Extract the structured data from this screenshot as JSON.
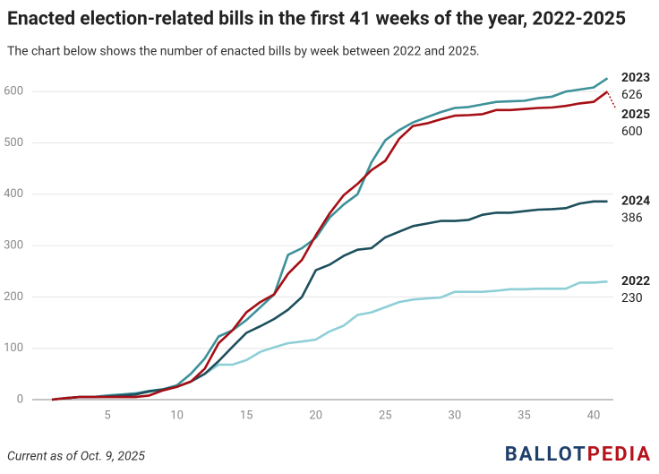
{
  "chart_data": {
    "type": "line",
    "title": "Enacted election-related bills in the first 41 weeks of the year, 2022-2025",
    "subtitle": "The chart below shows the number of enacted bills by week between 2022 and 2025.",
    "footnote": "Current as of Oct. 9, 2025",
    "logo": [
      "BALLOT",
      "PEDIA"
    ],
    "x": [
      1,
      2,
      3,
      4,
      5,
      6,
      7,
      8,
      9,
      10,
      11,
      12,
      13,
      14,
      15,
      16,
      17,
      18,
      19,
      20,
      21,
      22,
      23,
      24,
      25,
      26,
      27,
      28,
      29,
      30,
      31,
      32,
      33,
      34,
      35,
      36,
      37,
      38,
      39,
      40,
      41
    ],
    "series": [
      {
        "name": "2022",
        "color": "#8ecfd6",
        "values": [
          0,
          3,
          5,
          5,
          8,
          10,
          12,
          15,
          20,
          25,
          35,
          50,
          68,
          68,
          77,
          93,
          102,
          110,
          113,
          117,
          133,
          144,
          165,
          170,
          180,
          190,
          195,
          197,
          199,
          210,
          210,
          210,
          212,
          215,
          215,
          216,
          216,
          216,
          228,
          228,
          230
        ]
      },
      {
        "name": "2023",
        "color": "#3d9199",
        "values": [
          0,
          3,
          5,
          5,
          8,
          10,
          12,
          17,
          20,
          28,
          50,
          80,
          123,
          135,
          155,
          180,
          205,
          282,
          295,
          315,
          355,
          380,
          400,
          462,
          505,
          525,
          540,
          550,
          560,
          568,
          570,
          575,
          580,
          581,
          582,
          587,
          590,
          600,
          604,
          608,
          626
        ]
      },
      {
        "name": "2024",
        "color": "#1d4f5c",
        "values": [
          0,
          3,
          5,
          5,
          6,
          8,
          10,
          16,
          20,
          25,
          35,
          50,
          75,
          103,
          130,
          143,
          157,
          175,
          200,
          252,
          263,
          280,
          292,
          295,
          316,
          327,
          338,
          343,
          348,
          348,
          350,
          360,
          364,
          364,
          367,
          370,
          371,
          373,
          382,
          386,
          386
        ]
      },
      {
        "name": "2025",
        "color": "#a50f15",
        "values": [
          0,
          3,
          5,
          5,
          5,
          5,
          5,
          8,
          18,
          25,
          35,
          60,
          110,
          135,
          170,
          190,
          205,
          245,
          272,
          320,
          363,
          398,
          420,
          447,
          465,
          508,
          533,
          538,
          546,
          553,
          554,
          556,
          564,
          564,
          566,
          568,
          569,
          572,
          577,
          580,
          600
        ]
      }
    ],
    "xlim": [
      0,
      42
    ],
    "ylim": [
      0,
      630
    ],
    "xticks": [
      5,
      10,
      15,
      20,
      25,
      30,
      35,
      40
    ],
    "yticks": [
      0,
      100,
      200,
      300,
      400,
      500,
      600
    ],
    "grid": true
  }
}
